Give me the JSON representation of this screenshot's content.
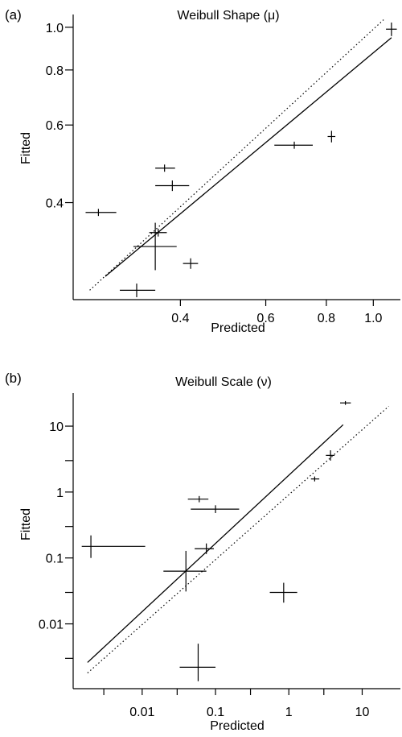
{
  "chart_data": [
    {
      "type": "scatter",
      "panel_label": "(a)",
      "title": "Weibull Shape (μ)",
      "xlabel": "Predicted",
      "ylabel": "Fitted",
      "x_scale": "log",
      "y_scale": "log",
      "xlim": [
        0.245,
        1.12
      ],
      "ylim": [
        0.245,
        1.06
      ],
      "x_ticks": [
        0.4,
        0.6,
        0.8,
        1.0
      ],
      "x_tick_labels": [
        "0.4",
        "0.6",
        "0.8",
        "1.0"
      ],
      "y_ticks": [
        0.4,
        0.6,
        0.8,
        1.0
      ],
      "y_tick_labels": [
        "0.4",
        "0.6",
        "0.8",
        "1.0"
      ],
      "points": [
        {
          "x": 0.271,
          "y": 0.38,
          "x_err": [
            0.255,
            0.295
          ],
          "y_err": [
            0.373,
            0.387
          ]
        },
        {
          "x": 0.325,
          "y": 0.253,
          "x_err": [
            0.3,
            0.355
          ],
          "y_err": [
            0.244,
            0.262
          ]
        },
        {
          "x": 0.355,
          "y": 0.318,
          "x_err": [
            0.32,
            0.393
          ],
          "y_err": [
            0.281,
            0.36
          ]
        },
        {
          "x": 0.36,
          "y": 0.342,
          "x_err": [
            0.345,
            0.375
          ],
          "y_err": [
            0.335,
            0.349
          ]
        },
        {
          "x": 0.371,
          "y": 0.479,
          "x_err": [
            0.355,
            0.39
          ],
          "y_err": [
            0.47,
            0.488
          ]
        },
        {
          "x": 0.385,
          "y": 0.437,
          "x_err": [
            0.355,
            0.417
          ],
          "y_err": [
            0.425,
            0.449
          ]
        },
        {
          "x": 0.42,
          "y": 0.291,
          "x_err": [
            0.405,
            0.435
          ],
          "y_err": [
            0.283,
            0.299
          ]
        },
        {
          "x": 0.687,
          "y": 0.54,
          "x_err": [
            0.625,
            0.75
          ],
          "y_err": [
            0.53,
            0.55
          ]
        },
        {
          "x": 0.82,
          "y": 0.565,
          "x_err": [
            0.805,
            0.835
          ],
          "y_err": [
            0.548,
            0.582
          ]
        },
        {
          "x": 1.09,
          "y": 0.99,
          "x_err": [
            1.062,
            1.118
          ],
          "y_err": [
            0.955,
            1.025
          ]
        }
      ],
      "fitted_line": {
        "x": [
          0.28,
          1.09
        ],
        "y": [
          0.272,
          0.947
        ]
      },
      "reference_line": {
        "x": [
          0.26,
          1.05
        ],
        "y": [
          0.253,
          1.04
        ]
      }
    },
    {
      "type": "scatter",
      "panel_label": "(b)",
      "title": "Weibull Scale (ν)",
      "xlabel": "Predicted",
      "ylabel": "Fitted",
      "x_scale": "log",
      "y_scale": "log",
      "xlim": [
        0.0013,
        30
      ],
      "ylim": [
        0.0011,
        30
      ],
      "x_ticks": [
        0.01,
        0.1,
        1,
        10
      ],
      "x_tick_labels": [
        "0.01",
        "0.1",
        "1",
        "10"
      ],
      "x_minor_ticks": [
        0.003,
        0.03,
        0.3,
        3
      ],
      "y_ticks": [
        0.01,
        0.1,
        1,
        10
      ],
      "y_tick_labels": [
        "0.01",
        "0.1",
        "1",
        "10"
      ],
      "y_minor_ticks": [
        0.003,
        0.03,
        0.3,
        3
      ],
      "points": [
        {
          "x": 0.002,
          "y": 0.15,
          "x_err": [
            0.0015,
            0.011
          ],
          "y_err": [
            0.1,
            0.22
          ]
        },
        {
          "x": 0.0395,
          "y": 0.063,
          "x_err": [
            0.0195,
            0.075
          ],
          "y_err": [
            0.031,
            0.128
          ]
        },
        {
          "x": 0.058,
          "y": 0.0022,
          "x_err": [
            0.0325,
            0.1
          ],
          "y_err": [
            0.00135,
            0.005
          ]
        },
        {
          "x": 0.06,
          "y": 0.78,
          "x_err": [
            0.042,
            0.08
          ],
          "y_err": [
            0.7,
            0.87
          ]
        },
        {
          "x": 0.075,
          "y": 0.138,
          "x_err": [
            0.052,
            0.095
          ],
          "y_err": [
            0.115,
            0.166
          ]
        },
        {
          "x": 0.1,
          "y": 0.55,
          "x_err": [
            0.046,
            0.21
          ],
          "y_err": [
            0.48,
            0.63
          ]
        },
        {
          "x": 0.85,
          "y": 0.03,
          "x_err": [
            0.55,
            1.3
          ],
          "y_err": [
            0.021,
            0.042
          ]
        },
        {
          "x": 2.25,
          "y": 1.58,
          "x_err": [
            2.0,
            2.6
          ],
          "y_err": [
            1.45,
            1.72
          ]
        },
        {
          "x": 3.7,
          "y": 3.6,
          "x_err": [
            3.2,
            4.2
          ],
          "y_err": [
            3.0,
            4.3
          ]
        },
        {
          "x": 5.9,
          "y": 22.5,
          "x_err": [
            5.0,
            7.0
          ],
          "y_err": [
            21,
            24
          ]
        }
      ],
      "fitted_line": {
        "x": [
          0.0018,
          5.5
        ],
        "y": [
          0.0026,
          10.5
        ]
      },
      "reference_line": {
        "x": [
          0.0018,
          23
        ],
        "y": [
          0.0018,
          20
        ]
      }
    }
  ]
}
